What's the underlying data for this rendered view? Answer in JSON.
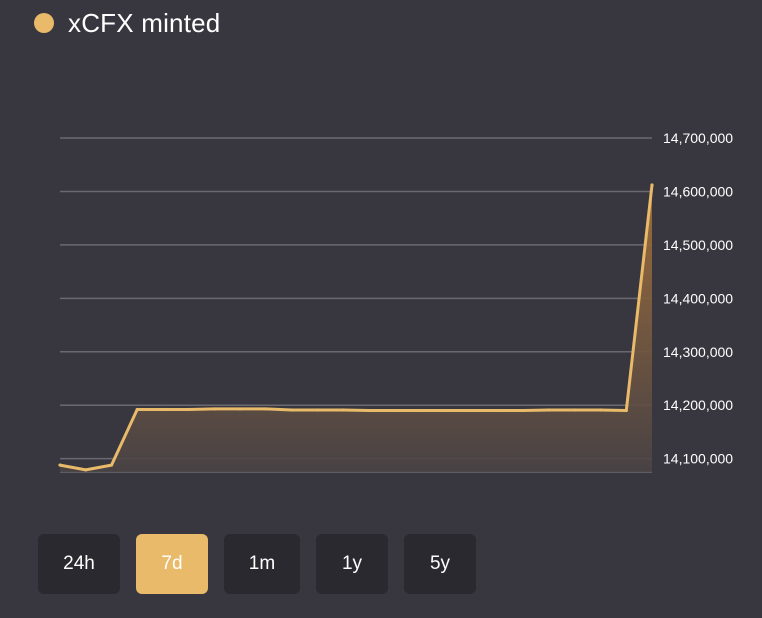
{
  "legend": {
    "label": "xCFX minted",
    "color": "#e8ba6a"
  },
  "range_buttons": {
    "items": [
      "24h",
      "7d",
      "1m",
      "1y",
      "5y"
    ],
    "active": "7d"
  },
  "colors": {
    "background": "#38373f",
    "line": "#e8ba6a",
    "grid": "#6a6970",
    "button": "#2a2930",
    "button_active": "#e8ba6a"
  },
  "chart_data": {
    "type": "area",
    "series": [
      {
        "name": "xCFX minted",
        "values": [
          14088000,
          14079000,
          14088000,
          14192000,
          14192000,
          14192000,
          14193000,
          14193000,
          14193000,
          14191000,
          14191000,
          14191000,
          14190000,
          14190000,
          14190000,
          14190000,
          14190000,
          14190000,
          14190000,
          14191000,
          14191000,
          14191000,
          14190000,
          14612000
        ]
      }
    ],
    "ylim": [
      14075000,
      14700000
    ],
    "yticks": [
      14100000,
      14200000,
      14300000,
      14400000,
      14500000,
      14600000,
      14700000
    ],
    "ytick_labels": [
      "14,100,000",
      "14,200,000",
      "14,300,000",
      "14,400,000",
      "14,500,000",
      "14,600,000",
      "14,700,000"
    ],
    "grid": true,
    "legend_position": "top-left"
  }
}
